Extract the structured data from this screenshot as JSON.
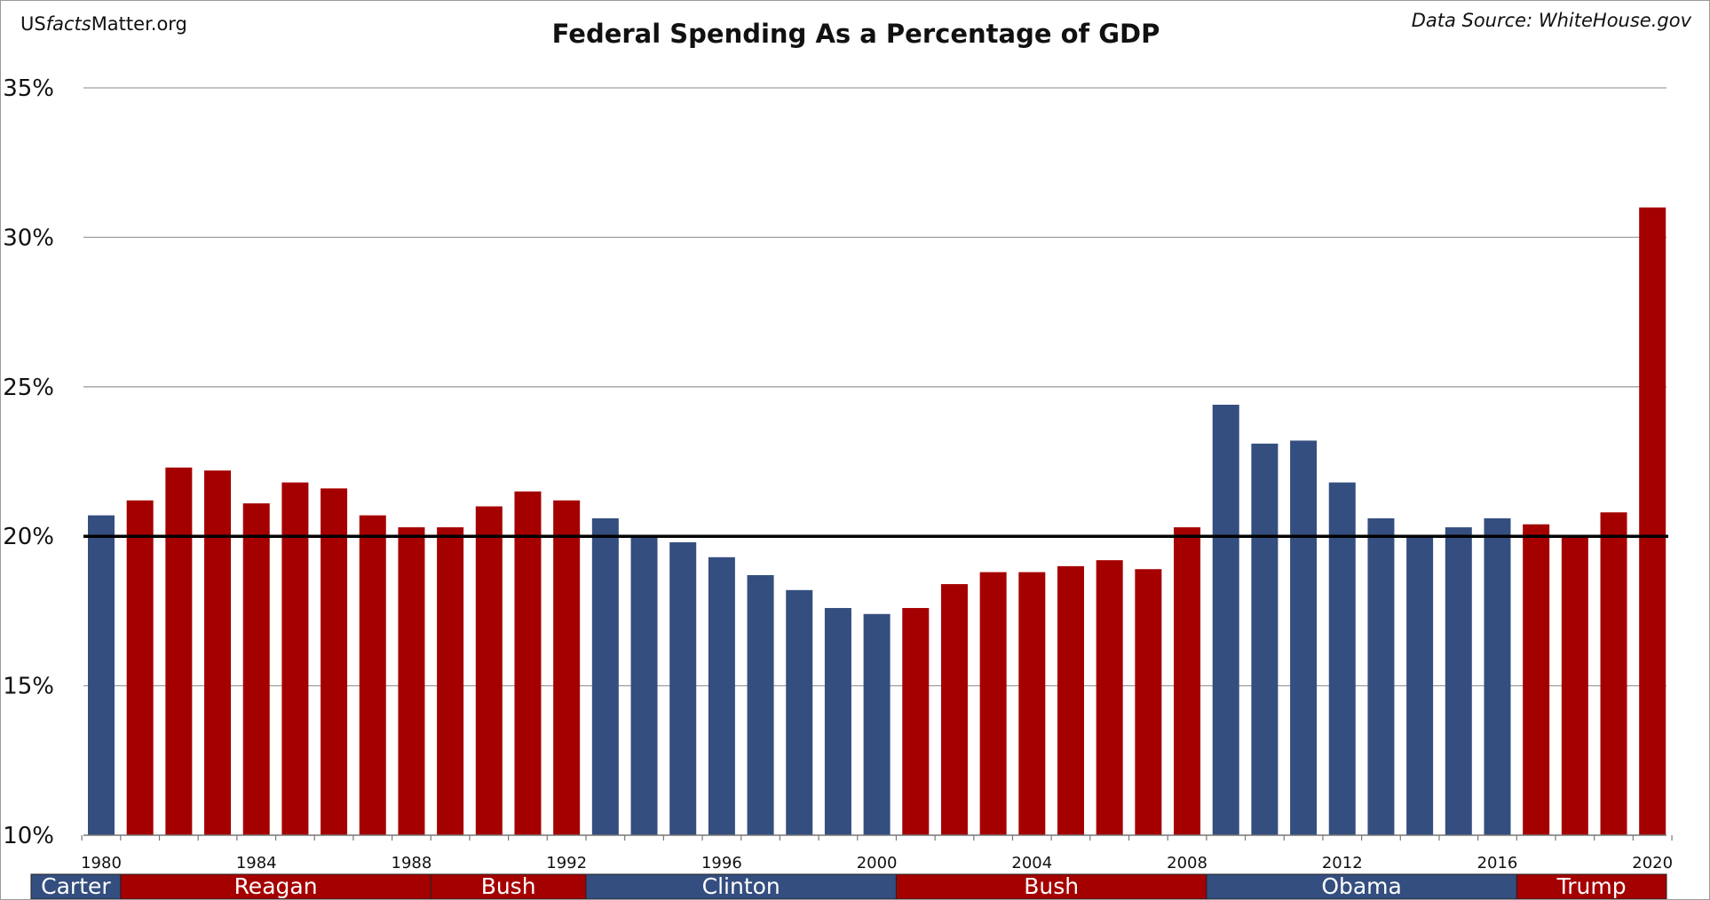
{
  "header": {
    "site_prefix": "US",
    "site_italic": "facts",
    "site_suffix": "Matter.org",
    "title": "Federal Spending As a Percentage of GDP",
    "source": "Data Source: WhiteHouse.gov"
  },
  "colors": {
    "democrat": "#344e7f",
    "republican": "#a50000",
    "gridline": "#a0a0a0",
    "reference_line": "#000000"
  },
  "chart_data": {
    "type": "bar",
    "title": "Federal Spending As a Percentage of GDP",
    "xlabel": "",
    "ylabel": "",
    "ylim": [
      10,
      35
    ],
    "yticks": [
      10,
      15,
      20,
      25,
      30,
      35
    ],
    "ytick_labels": [
      "10%",
      "15%",
      "20%",
      "25%",
      "30%",
      "35%"
    ],
    "grid": true,
    "reference_line": 20,
    "categories": [
      1980,
      1981,
      1982,
      1983,
      1984,
      1985,
      1986,
      1987,
      1988,
      1989,
      1990,
      1991,
      1992,
      1993,
      1994,
      1995,
      1996,
      1997,
      1998,
      1999,
      2000,
      2001,
      2002,
      2003,
      2004,
      2005,
      2006,
      2007,
      2008,
      2009,
      2010,
      2011,
      2012,
      2013,
      2014,
      2015,
      2016,
      2017,
      2018,
      2019,
      2020
    ],
    "xtick_labels": [
      "1980",
      "1984",
      "1988",
      "1992",
      "1996",
      "2000",
      "2004",
      "2008",
      "2012",
      "2016",
      "2020"
    ],
    "values": [
      20.7,
      21.2,
      22.3,
      22.2,
      21.1,
      21.8,
      21.6,
      20.7,
      20.3,
      20.3,
      21.0,
      21.5,
      21.2,
      20.6,
      20.0,
      19.8,
      19.3,
      18.7,
      18.2,
      17.6,
      17.4,
      17.6,
      18.4,
      18.8,
      18.8,
      19.0,
      19.2,
      18.9,
      20.3,
      24.4,
      23.1,
      23.2,
      21.8,
      20.6,
      20.0,
      20.3,
      20.6,
      20.4,
      20.0,
      20.8,
      31.0
    ],
    "parties": [
      "D",
      "R",
      "R",
      "R",
      "R",
      "R",
      "R",
      "R",
      "R",
      "R",
      "R",
      "R",
      "R",
      "D",
      "D",
      "D",
      "D",
      "D",
      "D",
      "D",
      "D",
      "R",
      "R",
      "R",
      "R",
      "R",
      "R",
      "R",
      "R",
      "D",
      "D",
      "D",
      "D",
      "D",
      "D",
      "D",
      "D",
      "R",
      "R",
      "R",
      "R"
    ],
    "presidents": [
      {
        "name": "Carter",
        "party": "D",
        "start": 1980,
        "end": 1980
      },
      {
        "name": "Reagan",
        "party": "R",
        "start": 1981,
        "end": 1988
      },
      {
        "name": "Bush",
        "party": "R",
        "start": 1989,
        "end": 1992
      },
      {
        "name": "Clinton",
        "party": "D",
        "start": 1993,
        "end": 2000
      },
      {
        "name": "Bush",
        "party": "R",
        "start": 2001,
        "end": 2008
      },
      {
        "name": "Obama",
        "party": "D",
        "start": 2009,
        "end": 2016
      },
      {
        "name": "Trump",
        "party": "R",
        "start": 2017,
        "end": 2020
      }
    ]
  }
}
